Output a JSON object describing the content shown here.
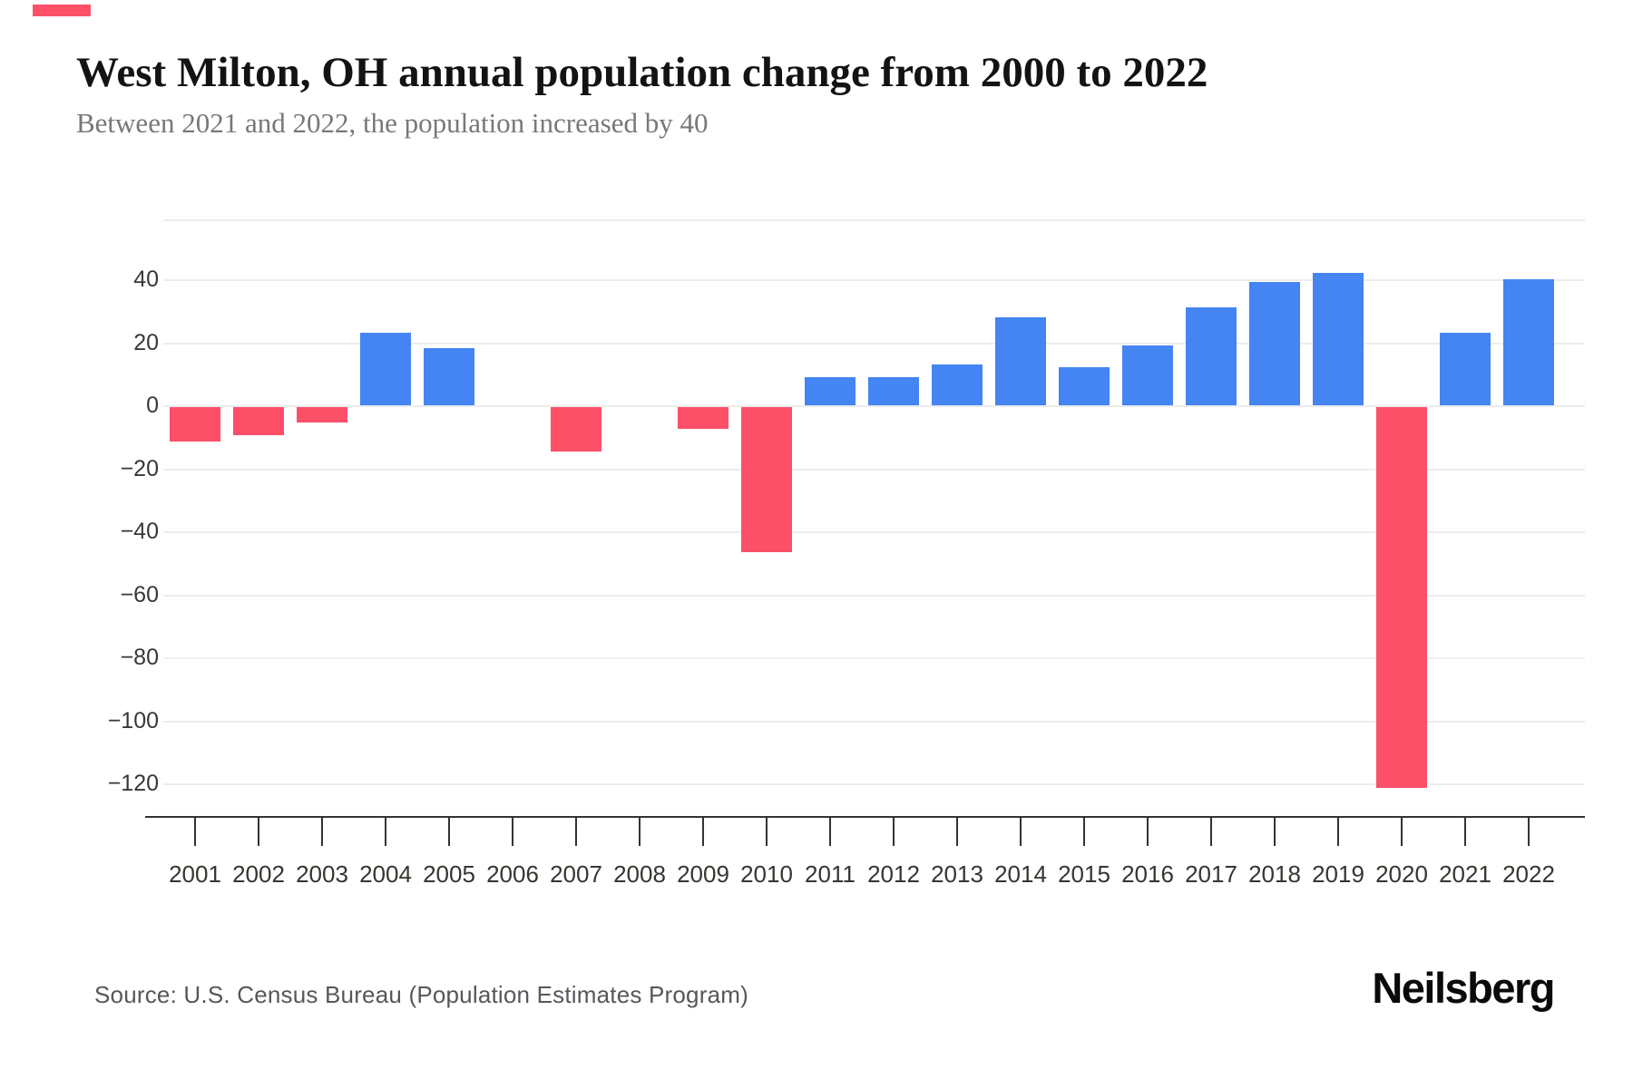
{
  "header": {
    "title": "West Milton, OH annual population change from 2000 to 2022",
    "subtitle": "Between 2021 and 2022, the population increased by 40",
    "accent_color": "#fc5069"
  },
  "chart_data": {
    "type": "bar",
    "title": "West Milton, OH annual population change from 2000 to 2022",
    "xlabel": "",
    "ylabel": "",
    "categories": [
      "2001",
      "2002",
      "2003",
      "2004",
      "2005",
      "2006",
      "2007",
      "2008",
      "2009",
      "2010",
      "2011",
      "2012",
      "2013",
      "2014",
      "2015",
      "2016",
      "2017",
      "2018",
      "2019",
      "2020",
      "2021",
      "2022"
    ],
    "values": [
      -11,
      -9,
      -5,
      23,
      18,
      0,
      -14,
      0,
      -7,
      -46,
      9,
      9,
      13,
      28,
      12,
      19,
      31,
      39,
      42,
      -121,
      23,
      40
    ],
    "y_ticks": [
      40,
      20,
      0,
      -20,
      -40,
      -60,
      -80,
      -100,
      -120
    ],
    "ylim": [
      -130,
      59
    ],
    "grid": true,
    "legend": "none",
    "positive_color": "#4484f3",
    "negative_color": "#fc5069"
  },
  "footer": {
    "source": "Source: U.S. Census Bureau (Population Estimates Program)",
    "logo": "Neilsberg"
  }
}
